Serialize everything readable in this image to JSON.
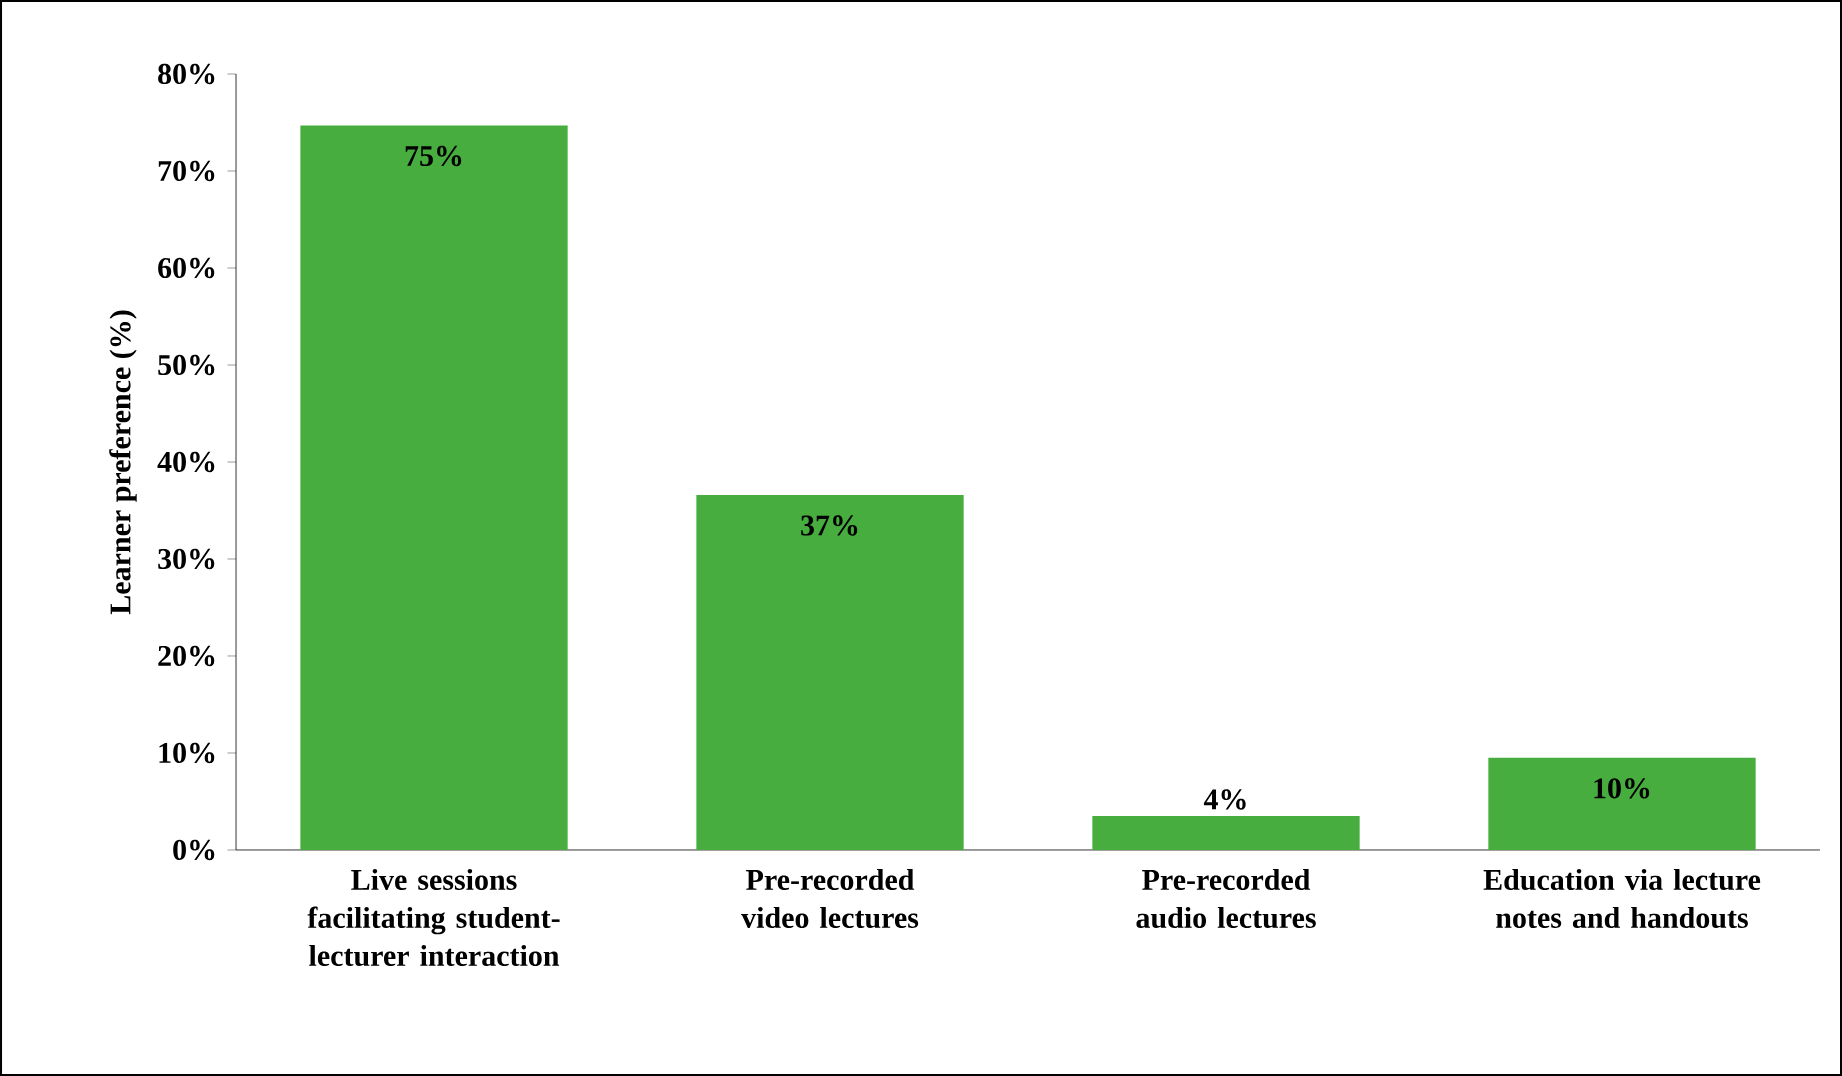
{
  "chart_data": {
    "type": "bar",
    "ylabel": "Learner preference (%)",
    "categories": [
      "Live sessions facilitating student-lecturer interaction",
      "Pre-recorded video lectures",
      "Pre-recorded audio lectures",
      "Education via lecture notes and handouts"
    ],
    "values": [
      74.7,
      36.6,
      3.5,
      9.5
    ],
    "value_labels": [
      "75%",
      "37%",
      "4%",
      "10%"
    ],
    "color": "#46ad3e",
    "ylim": [
      0,
      80
    ],
    "yticks": [
      {
        "value": 0,
        "label": "0%"
      },
      {
        "value": 10,
        "label": "10%"
      },
      {
        "value": 20,
        "label": "20%"
      },
      {
        "value": 30,
        "label": "30%"
      },
      {
        "value": 40,
        "label": "40%"
      },
      {
        "value": 50,
        "label": "50%"
      },
      {
        "value": 60,
        "label": "60%"
      },
      {
        "value": 70,
        "label": "70%"
      },
      {
        "value": 80,
        "label": "80%"
      }
    ],
    "grid": false
  }
}
